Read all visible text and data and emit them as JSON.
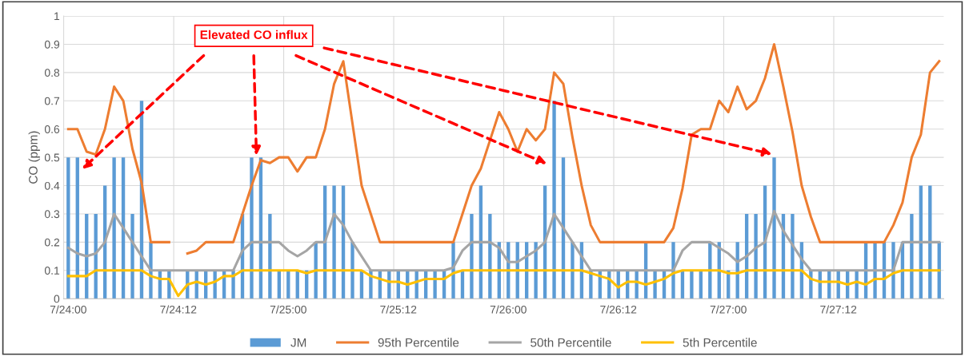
{
  "chart_data": {
    "type": "bar",
    "ylabel": "CO (ppm)",
    "annotations": [
      "Elevated CO influx"
    ],
    "categories": [
      "7/24:00",
      null,
      null,
      null,
      null,
      null,
      null,
      null,
      null,
      null,
      null,
      null,
      "7/24:12",
      null,
      null,
      null,
      null,
      null,
      null,
      null,
      null,
      null,
      null,
      null,
      "7/25:00",
      null,
      null,
      null,
      null,
      null,
      null,
      null,
      null,
      null,
      null,
      null,
      "7/25:12",
      null,
      null,
      null,
      null,
      null,
      null,
      null,
      null,
      null,
      null,
      null,
      "7/26:00",
      null,
      null,
      null,
      null,
      null,
      null,
      null,
      null,
      null,
      null,
      null,
      "7/26:12",
      null,
      null,
      null,
      null,
      null,
      null,
      null,
      null,
      null,
      null,
      null,
      "7/27:00",
      null,
      null,
      null,
      null,
      null,
      null,
      null,
      null,
      null,
      null,
      null,
      "7/27:12",
      null,
      null,
      null,
      null,
      null,
      null,
      null,
      null,
      null,
      null,
      null
    ],
    "series": [
      {
        "name": "JM",
        "color": "#5b9bd5",
        "values": [
          0.5,
          0.5,
          0.3,
          0.3,
          0.4,
          0.5,
          0.5,
          0.3,
          0.7,
          0.2,
          0.1,
          0.1,
          null,
          0.1,
          0.1,
          0.1,
          0.1,
          0.1,
          0.1,
          0.3,
          0.5,
          0.5,
          0.3,
          0.1,
          0.1,
          0.1,
          0.1,
          0.2,
          0.4,
          0.4,
          0.4,
          0.2,
          0.1,
          0.1,
          0.1,
          0.1,
          0.1,
          0.1,
          0.1,
          0.1,
          0.1,
          0.1,
          0.2,
          0.1,
          0.3,
          0.4,
          0.3,
          0.2,
          0.2,
          0.2,
          0.2,
          0.2,
          0.4,
          0.7,
          0.5,
          0.2,
          0.2,
          0.1,
          0.1,
          0.1,
          0.1,
          0.1,
          0.1,
          0.2,
          0.1,
          0.1,
          0.2,
          0.1,
          0.1,
          0.1,
          0.2,
          0.2,
          0.1,
          0.2,
          0.3,
          0.3,
          0.4,
          0.5,
          0.3,
          0.3,
          0.2,
          0.1,
          0.1,
          0.1,
          0.1,
          0.1,
          0.1,
          0.2,
          0.2,
          0.2,
          0.2,
          0.2,
          0.3,
          0.4,
          0.4,
          0.2
        ]
      },
      {
        "name": "95th Percentile",
        "type": "line",
        "color": "#ed7d31",
        "values": [
          0.6,
          0.6,
          0.52,
          0.51,
          0.6,
          0.75,
          0.7,
          0.53,
          0.41,
          0.2,
          0.2,
          0.2,
          null,
          0.16,
          0.17,
          0.2,
          0.2,
          0.2,
          0.2,
          0.3,
          0.4,
          0.49,
          0.48,
          0.5,
          0.5,
          0.45,
          0.5,
          0.5,
          0.6,
          0.76,
          0.84,
          0.62,
          0.4,
          0.3,
          0.2,
          0.2,
          0.2,
          0.2,
          0.2,
          0.2,
          0.2,
          0.2,
          0.2,
          0.3,
          0.4,
          0.46,
          0.56,
          0.66,
          0.6,
          0.52,
          0.6,
          0.56,
          0.6,
          0.8,
          0.76,
          0.57,
          0.4,
          0.26,
          0.2,
          0.2,
          0.2,
          0.2,
          0.2,
          0.2,
          0.2,
          0.2,
          0.25,
          0.39,
          0.58,
          0.6,
          0.6,
          0.7,
          0.66,
          0.75,
          0.67,
          0.7,
          0.78,
          0.9,
          0.75,
          0.59,
          0.4,
          0.29,
          0.2,
          0.2,
          0.2,
          0.2,
          0.2,
          0.2,
          0.2,
          0.2,
          0.26,
          0.34,
          0.5,
          0.58,
          0.8,
          0.84
        ]
      },
      {
        "name": "50th Percentile",
        "type": "line",
        "color": "#a5a5a5",
        "values": [
          0.18,
          0.16,
          0.15,
          0.16,
          0.2,
          0.3,
          0.25,
          0.2,
          0.15,
          0.1,
          0.1,
          0.1,
          0.1,
          0.1,
          0.1,
          0.1,
          0.1,
          0.1,
          0.1,
          0.17,
          0.2,
          0.2,
          0.2,
          0.2,
          0.17,
          0.15,
          0.17,
          0.2,
          0.2,
          0.3,
          0.26,
          0.2,
          0.15,
          0.1,
          0.1,
          0.1,
          0.1,
          0.1,
          0.1,
          0.1,
          0.1,
          0.1,
          0.11,
          0.17,
          0.2,
          0.2,
          0.2,
          0.18,
          0.13,
          0.13,
          0.15,
          0.17,
          0.2,
          0.3,
          0.25,
          0.2,
          0.15,
          0.1,
          0.1,
          0.1,
          0.1,
          0.1,
          0.1,
          0.1,
          0.1,
          0.1,
          0.1,
          0.17,
          0.2,
          0.2,
          0.2,
          0.18,
          0.16,
          0.13,
          0.15,
          0.18,
          0.2,
          0.31,
          0.24,
          0.19,
          0.14,
          0.1,
          0.1,
          0.1,
          0.1,
          0.1,
          0.1,
          0.1,
          0.1,
          0.1,
          0.1,
          0.2,
          0.2,
          0.2,
          0.2,
          0.2
        ]
      },
      {
        "name": "5th Percentile",
        "type": "line",
        "color": "#ffc000",
        "values": [
          0.08,
          0.08,
          0.08,
          0.1,
          0.1,
          0.1,
          0.1,
          0.1,
          0.1,
          0.08,
          0.07,
          0.07,
          0.01,
          0.05,
          0.06,
          0.05,
          0.06,
          0.08,
          0.08,
          0.1,
          0.1,
          0.1,
          0.1,
          0.1,
          0.1,
          0.1,
          0.09,
          0.1,
          0.1,
          0.1,
          0.1,
          0.1,
          0.1,
          0.08,
          0.07,
          0.06,
          0.06,
          0.05,
          0.06,
          0.07,
          0.07,
          0.07,
          0.09,
          0.1,
          0.1,
          0.1,
          0.1,
          0.1,
          0.1,
          0.1,
          0.1,
          0.1,
          0.1,
          0.1,
          0.1,
          0.1,
          0.1,
          0.09,
          0.08,
          0.07,
          0.04,
          0.06,
          0.06,
          0.05,
          0.06,
          0.07,
          0.09,
          0.1,
          0.1,
          0.1,
          0.1,
          0.1,
          0.09,
          0.09,
          0.1,
          0.1,
          0.1,
          0.1,
          0.1,
          0.1,
          0.1,
          0.07,
          0.06,
          0.06,
          0.06,
          0.05,
          0.06,
          0.05,
          0.07,
          0.07,
          0.09,
          0.1,
          0.1,
          0.1,
          0.1,
          0.1
        ]
      }
    ],
    "ylim": [
      0,
      1
    ],
    "yticks": [
      0,
      0.1,
      0.2,
      0.3,
      0.4,
      0.5,
      0.6,
      0.7,
      0.8,
      0.9,
      1
    ],
    "grid": true,
    "legend": "bottom",
    "marker": "none",
    "line_style": "solid"
  }
}
